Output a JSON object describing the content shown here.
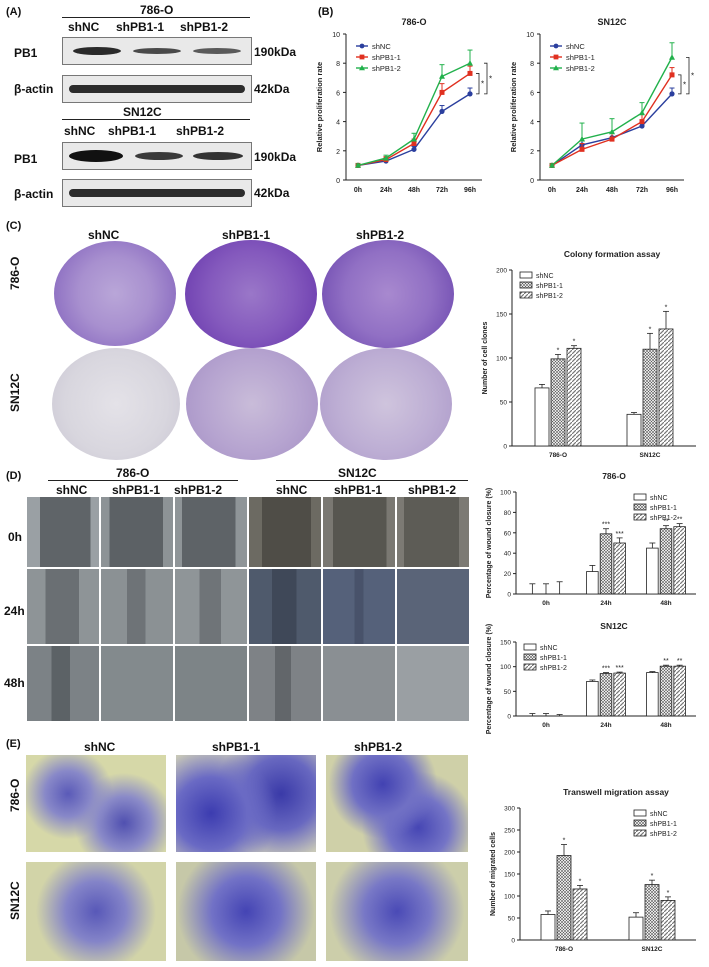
{
  "panel_labels": {
    "A": "(A)",
    "B": "(B)",
    "C": "(C)",
    "D": "(D)",
    "E": "(E)"
  },
  "western_blot": {
    "top_cell_line": "786-O",
    "bottom_cell_line": "SN12C",
    "lanes": [
      "shNC",
      "shPB1-1",
      "shPB1-2"
    ],
    "rows": [
      {
        "label": "PB1",
        "size": "190kDa"
      },
      {
        "label": "β-actin",
        "size": "42kDa"
      }
    ]
  },
  "colony": {
    "columns": [
      "shNC",
      "shPB1-1",
      "shPB1-2"
    ],
    "rows": [
      "786-O",
      "SN12C"
    ]
  },
  "wound": {
    "groups": [
      "786-O",
      "SN12C"
    ],
    "columns": [
      "shNC",
      "shPB1-1",
      "shPB1-2",
      "shNC",
      "shPB1-1",
      "shPB1-2"
    ],
    "times": [
      "0h",
      "24h",
      "48h"
    ]
  },
  "transwell": {
    "columns": [
      "shNC",
      "shPB1-1",
      "shPB1-2"
    ],
    "rows": [
      "786-O",
      "SN12C"
    ]
  },
  "chart_data": [
    {
      "id": "prolif-786o",
      "type": "line",
      "title": "786-O",
      "ylabel": "Relative proliferation rate",
      "categories": [
        "0h",
        "24h",
        "48h",
        "72h",
        "96h"
      ],
      "ylim": [
        0,
        10
      ],
      "yticks": [
        "0",
        "2",
        "4",
        "6",
        "8",
        "10"
      ],
      "legend": "top-left",
      "significance": [
        "*",
        "*"
      ],
      "series": [
        {
          "name": "shNC",
          "color": "#2b3f9e",
          "marker": "circle",
          "values": [
            1.0,
            1.3,
            2.1,
            4.7,
            5.9
          ],
          "errors": [
            0.1,
            0.1,
            0.2,
            0.4,
            0.4
          ]
        },
        {
          "name": "shPB1-1",
          "color": "#e03020",
          "marker": "square",
          "values": [
            1.0,
            1.4,
            2.5,
            6.0,
            7.3
          ],
          "errors": [
            0.1,
            0.2,
            0.3,
            0.6,
            0.5
          ]
        },
        {
          "name": "shPB1-2",
          "color": "#22b14c",
          "marker": "triangle",
          "values": [
            1.0,
            1.5,
            2.8,
            7.1,
            8.0
          ],
          "errors": [
            0.1,
            0.2,
            0.4,
            0.8,
            0.9
          ]
        }
      ]
    },
    {
      "id": "prolif-sn12c",
      "type": "line",
      "title": "SN12C",
      "ylabel": "Relative proliferation rate",
      "categories": [
        "0h",
        "24h",
        "48h",
        "72h",
        "96h"
      ],
      "ylim": [
        0,
        10
      ],
      "yticks": [
        "0",
        "2",
        "4",
        "6",
        "8",
        "10"
      ],
      "legend": "top-left",
      "significance": [
        "*",
        "*"
      ],
      "series": [
        {
          "name": "shNC",
          "color": "#2b3f9e",
          "marker": "circle",
          "values": [
            1.0,
            2.4,
            2.9,
            3.7,
            5.9
          ],
          "errors": [
            0.1,
            0.3,
            0.3,
            0.3,
            0.4
          ]
        },
        {
          "name": "shPB1-1",
          "color": "#e03020",
          "marker": "square",
          "values": [
            1.0,
            2.1,
            2.8,
            4.0,
            7.2
          ],
          "errors": [
            0.1,
            0.4,
            0.4,
            0.5,
            0.5
          ]
        },
        {
          "name": "shPB1-2",
          "color": "#22b14c",
          "marker": "triangle",
          "values": [
            1.0,
            2.8,
            3.3,
            4.6,
            8.4
          ],
          "errors": [
            0.1,
            1.1,
            0.9,
            0.7,
            1.0
          ]
        }
      ]
    },
    {
      "id": "colony-chart",
      "type": "bar",
      "title": "Colony formation assay",
      "ylabel": "Number of cell clones",
      "categories": [
        "786-O",
        "SN12C"
      ],
      "ylim": [
        0,
        200
      ],
      "yticks": [
        "0",
        "50",
        "100",
        "150",
        "200"
      ],
      "legend": "top-left",
      "series": [
        {
          "name": "shNC",
          "fill": "white",
          "values": [
            66,
            36
          ],
          "errors": [
            4,
            2
          ],
          "stars": [
            "",
            ""
          ]
        },
        {
          "name": "shPB1-1",
          "fill": "cross",
          "values": [
            99,
            110
          ],
          "errors": [
            5,
            18
          ],
          "stars": [
            "*",
            "*"
          ]
        },
        {
          "name": "shPB1-2",
          "fill": "diag",
          "values": [
            111,
            133
          ],
          "errors": [
            3,
            20
          ],
          "stars": [
            "*",
            "*"
          ]
        }
      ]
    },
    {
      "id": "wound-786o",
      "type": "bar",
      "title": "786-O",
      "ylabel": "Percentage of wound closure (%)",
      "categories": [
        "0h",
        "24h",
        "48h"
      ],
      "ylim": [
        0,
        100
      ],
      "yticks": [
        "0",
        "20",
        "40",
        "60",
        "80",
        "100"
      ],
      "legend": "top-right",
      "series": [
        {
          "name": "shNC",
          "fill": "white",
          "values": [
            0,
            22,
            45
          ],
          "errors": [
            10,
            6,
            5
          ],
          "stars": [
            "",
            "",
            ""
          ]
        },
        {
          "name": "shPB1-1",
          "fill": "cross",
          "values": [
            0,
            59,
            64
          ],
          "errors": [
            10,
            5,
            3
          ],
          "stars": [
            "",
            "***",
            "**"
          ]
        },
        {
          "name": "shPB1-2",
          "fill": "diag",
          "values": [
            0,
            50,
            66
          ],
          "errors": [
            12,
            5,
            3
          ],
          "stars": [
            "",
            "***",
            "**"
          ]
        }
      ]
    },
    {
      "id": "wound-sn12c",
      "type": "bar",
      "title": "SN12C",
      "ylabel": "Percentage of wound closure (%)",
      "categories": [
        "0h",
        "24h",
        "48h"
      ],
      "ylim": [
        0,
        150
      ],
      "yticks": [
        "0",
        "50",
        "100",
        "150"
      ],
      "legend": "top-left",
      "series": [
        {
          "name": "shNC",
          "fill": "white",
          "values": [
            0,
            70,
            88
          ],
          "errors": [
            5,
            3,
            2
          ],
          "stars": [
            "",
            "",
            ""
          ]
        },
        {
          "name": "shPB1-1",
          "fill": "cross",
          "values": [
            0,
            86,
            101
          ],
          "errors": [
            5,
            2,
            2
          ],
          "stars": [
            "",
            "***",
            "**"
          ]
        },
        {
          "name": "shPB1-2",
          "fill": "diag",
          "values": [
            0,
            87,
            101
          ],
          "errors": [
            3,
            2,
            2
          ],
          "stars": [
            "",
            "***",
            "**"
          ]
        }
      ]
    },
    {
      "id": "transwell-chart",
      "type": "bar",
      "title": "Transwell migration assay",
      "ylabel": "Number of migrated cells",
      "categories": [
        "786-O",
        "SN12C"
      ],
      "ylim": [
        0,
        300
      ],
      "yticks": [
        "0",
        "50",
        "100",
        "150",
        "200",
        "250",
        "300"
      ],
      "legend": "top-right",
      "series": [
        {
          "name": "shNC",
          "fill": "white",
          "values": [
            58,
            52
          ],
          "errors": [
            8,
            10
          ],
          "stars": [
            "",
            ""
          ]
        },
        {
          "name": "shPB1-1",
          "fill": "cross",
          "values": [
            192,
            126
          ],
          "errors": [
            25,
            10
          ],
          "stars": [
            "*",
            "*"
          ]
        },
        {
          "name": "shPB1-2",
          "fill": "diag",
          "values": [
            116,
            90
          ],
          "errors": [
            8,
            8
          ],
          "stars": [
            "*",
            "*"
          ]
        }
      ]
    }
  ]
}
